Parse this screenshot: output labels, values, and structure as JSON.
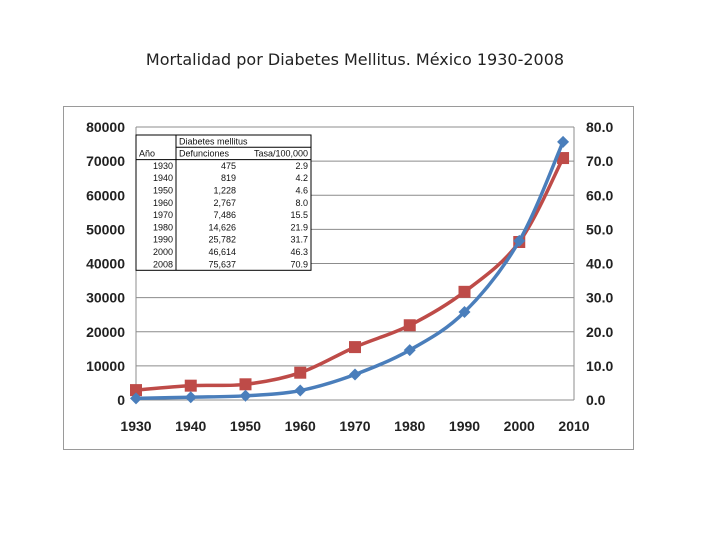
{
  "slide": {
    "title": "Mortalidad por Diabetes Mellitus. México 1930-2008"
  },
  "chart_data": {
    "type": "line",
    "title": "Mortalidad por Diabetes Mellitus. México 1930-2008",
    "xlabel": "",
    "ylabel": "",
    "xlim": [
      1930,
      2010
    ],
    "x_ticks": [
      "1930",
      "1940",
      "1950",
      "1960",
      "1970",
      "1980",
      "1990",
      "2000",
      "2010"
    ],
    "ylim_left": [
      0,
      80000
    ],
    "y_ticks_left": [
      "0",
      "10000",
      "20000",
      "30000",
      "40000",
      "50000",
      "60000",
      "70000",
      "80000"
    ],
    "ylim_right": [
      0,
      80
    ],
    "y_ticks_right": [
      "0.0",
      "10.0",
      "20.0",
      "30.0",
      "40.0",
      "50.0",
      "60.0",
      "70.0",
      "80.0"
    ],
    "grid": true,
    "legend": "none",
    "series": [
      {
        "name": "Defunciones",
        "axis": "left",
        "color": "#4a7ebb",
        "marker": "diamond",
        "x": [
          1930,
          1940,
          1950,
          1960,
          1970,
          1980,
          1990,
          2000,
          2008
        ],
        "values": [
          475,
          819,
          1228,
          2767,
          7486,
          14626,
          25782,
          46614,
          75637
        ]
      },
      {
        "name": "Tasa/100,000",
        "axis": "right",
        "color": "#be4b48",
        "marker": "square",
        "x": [
          1930,
          1940,
          1950,
          1960,
          1970,
          1980,
          1990,
          2000,
          2008
        ],
        "values": [
          2.9,
          4.2,
          4.6,
          8.0,
          15.5,
          21.9,
          31.7,
          46.3,
          70.9
        ]
      }
    ],
    "inset_table": {
      "title": "Diabetes mellitus",
      "headers": [
        "Año",
        "Defunciones",
        "Tasa/100,000"
      ],
      "rows": [
        [
          "1930",
          "475",
          "2.9"
        ],
        [
          "1940",
          "819",
          "4.2"
        ],
        [
          "1950",
          "1,228",
          "4.6"
        ],
        [
          "1960",
          "2,767",
          "8.0"
        ],
        [
          "1970",
          "7,486",
          "15.5"
        ],
        [
          "1980",
          "14,626",
          "21.9"
        ],
        [
          "1990",
          "25,782",
          "31.7"
        ],
        [
          "2000",
          "46,614",
          "46.3"
        ],
        [
          "2008",
          "75,637",
          "70.9"
        ]
      ]
    }
  }
}
